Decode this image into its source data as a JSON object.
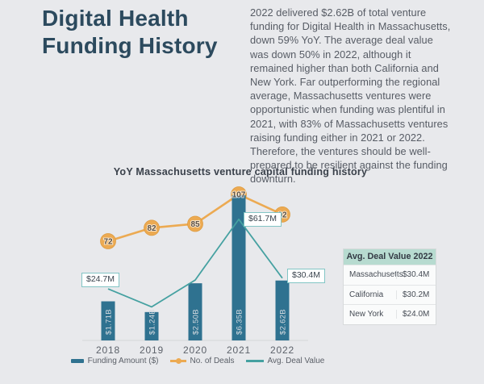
{
  "page": {
    "title_line1": "Digital Health",
    "title_line2": "Funding History",
    "paragraph": "2022 delivered $2.62B of total venture funding for Digital Health in Massachusetts, down 59% YoY. The average deal value was down 50% in 2022, although it remained higher than both California and New York. Far outperforming the regional average, Massachusetts ventures were opportunistic when funding was plentiful in 2021, with 83% of Massachusetts ventures raising funding either in 2021 or 2022. Therefore, the ventures should be well-prepared to be resilient against the funding downturn."
  },
  "chart_data": {
    "type": "bar+line combo",
    "title": "YoY Massachusetts venture capital funding history",
    "categories": [
      "2018",
      "2019",
      "2020",
      "2021",
      "2022"
    ],
    "series": [
      {
        "name": "Funding Amount ($)",
        "type": "bar",
        "unit": "billions USD",
        "values": [
          1.71,
          1.24,
          2.5,
          6.35,
          2.62
        ],
        "labels": [
          "$1.71B",
          "$1.24B",
          "$2.50B",
          "$6.35B",
          "$2.62B"
        ],
        "color": "#2f7290"
      },
      {
        "name": "No. of Deals",
        "type": "line",
        "values": [
          72,
          82,
          85,
          107,
          92
        ],
        "labels": [
          "72",
          "82",
          "85",
          "107",
          "92"
        ],
        "color": "#ecaa52"
      },
      {
        "name": "Avg. Deal Value",
        "type": "line",
        "unit": "millions USD",
        "values": [
          24.7,
          15.1,
          29.4,
          61.7,
          30.4
        ],
        "labels": [
          "$24.7M",
          null,
          null,
          "$61.7M",
          "$30.4M"
        ],
        "color": "#45a1a1"
      }
    ],
    "legend": [
      "Funding Amount ($)",
      "No. of Deals",
      "Avg. Deal Value"
    ],
    "legend_position": "bottom",
    "grid": false,
    "ylim_funding_billions": [
      0,
      6.35
    ],
    "value_labels_shown_on_chart": true
  },
  "table": {
    "header": "Avg. Deal Value 2022",
    "rows": [
      {
        "region": "Massachusetts",
        "value": "$30.4M"
      },
      {
        "region": "California",
        "value": "$30.2M"
      },
      {
        "region": "New York",
        "value": "$24.0M"
      }
    ]
  },
  "colors": {
    "background": "#e8e9ec",
    "heading": "#2c4a5e",
    "body_text": "#575c65",
    "bar": "#2f7290",
    "deals_line": "#ecaa52",
    "avg_line": "#45a1a1",
    "table_header_bg": "#b7dbd0",
    "callout_border": "#82c5c5"
  }
}
